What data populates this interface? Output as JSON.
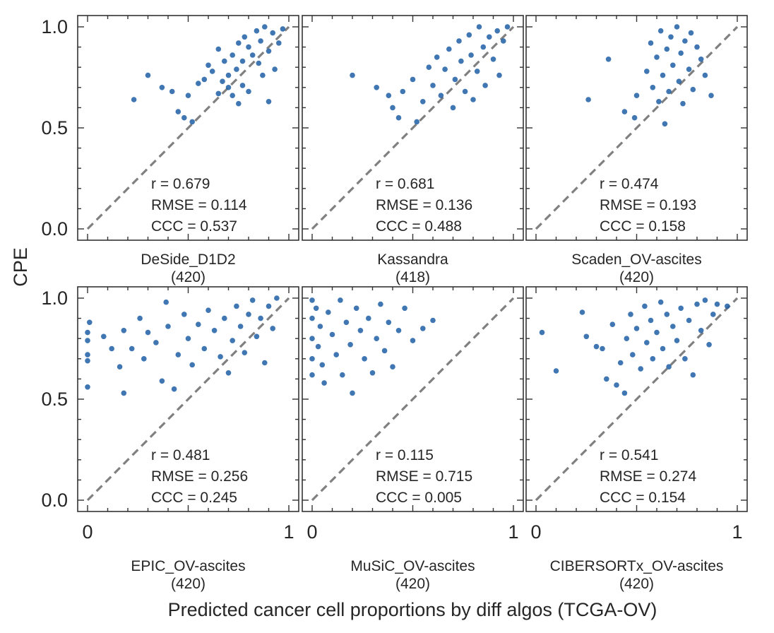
{
  "chart_data": {
    "type": "scatter",
    "ylabel": "CPE",
    "xlabel": "Predicted cancer cell proportions by diff algos (TCGA-OV)",
    "xlim": [
      0,
      1
    ],
    "ylim": [
      0,
      1
    ],
    "x_ticks": [
      "0",
      "1"
    ],
    "y_ticks": [
      "0.0",
      "0.5",
      "1.0"
    ],
    "diagonal": "y = x (dashed grey)",
    "marker_color": "#1f5fa6",
    "panels": [
      {
        "name": "DeSide_D1D2",
        "n_label": "(420)",
        "stats": [
          "r = 0.679",
          "RMSE = 0.114",
          "CCC = 0.537"
        ],
        "points": [
          [
            0.23,
            0.64
          ],
          [
            0.3,
            0.76
          ],
          [
            0.37,
            0.7
          ],
          [
            0.42,
            0.68
          ],
          [
            0.45,
            0.58
          ],
          [
            0.48,
            0.55
          ],
          [
            0.52,
            0.53
          ],
          [
            0.5,
            0.66
          ],
          [
            0.55,
            0.72
          ],
          [
            0.58,
            0.74
          ],
          [
            0.6,
            0.81
          ],
          [
            0.62,
            0.78
          ],
          [
            0.65,
            0.89
          ],
          [
            0.65,
            0.67
          ],
          [
            0.67,
            0.73
          ],
          [
            0.68,
            0.83
          ],
          [
            0.7,
            0.76
          ],
          [
            0.7,
            0.7
          ],
          [
            0.72,
            0.86
          ],
          [
            0.72,
            0.66
          ],
          [
            0.74,
            0.79
          ],
          [
            0.75,
            0.92
          ],
          [
            0.75,
            0.62
          ],
          [
            0.77,
            0.83
          ],
          [
            0.77,
            0.71
          ],
          [
            0.78,
            0.95
          ],
          [
            0.8,
            0.9
          ],
          [
            0.8,
            0.68
          ],
          [
            0.82,
            0.86
          ],
          [
            0.84,
            0.98
          ],
          [
            0.85,
            0.82
          ],
          [
            0.86,
            0.93
          ],
          [
            0.87,
            0.76
          ],
          [
            0.88,
            1.0
          ],
          [
            0.9,
            0.88
          ],
          [
            0.9,
            0.63
          ],
          [
            0.92,
            0.97
          ],
          [
            0.93,
            0.79
          ],
          [
            0.95,
            0.92
          ],
          [
            0.97,
            0.99
          ]
        ]
      },
      {
        "name": "Kassandra",
        "n_label": "(418)",
        "stats": [
          "r = 0.681",
          "RMSE = 0.136",
          "CCC = 0.488"
        ],
        "points": [
          [
            0.2,
            0.76
          ],
          [
            0.32,
            0.7
          ],
          [
            0.38,
            0.66
          ],
          [
            0.4,
            0.6
          ],
          [
            0.43,
            0.55
          ],
          [
            0.45,
            0.68
          ],
          [
            0.5,
            0.74
          ],
          [
            0.52,
            0.53
          ],
          [
            0.55,
            0.63
          ],
          [
            0.58,
            0.8
          ],
          [
            0.6,
            0.71
          ],
          [
            0.62,
            0.85
          ],
          [
            0.64,
            0.66
          ],
          [
            0.66,
            0.79
          ],
          [
            0.68,
            0.89
          ],
          [
            0.7,
            0.6
          ],
          [
            0.71,
            0.74
          ],
          [
            0.73,
            0.93
          ],
          [
            0.74,
            0.83
          ],
          [
            0.76,
            0.68
          ],
          [
            0.78,
            0.96
          ],
          [
            0.79,
            0.86
          ],
          [
            0.8,
            0.64
          ],
          [
            0.82,
            0.78
          ],
          [
            0.83,
            1.0
          ],
          [
            0.85,
            0.9
          ],
          [
            0.86,
            0.71
          ],
          [
            0.88,
            0.95
          ],
          [
            0.9,
            0.84
          ],
          [
            0.92,
            0.98
          ],
          [
            0.93,
            0.76
          ],
          [
            0.95,
            0.93
          ],
          [
            0.97,
            1.0
          ]
        ]
      },
      {
        "name": "Scaden_OV-ascites",
        "n_label": "(420)",
        "stats": [
          "r = 0.474",
          "RMSE = 0.193",
          "CCC = 0.158"
        ],
        "points": [
          [
            0.26,
            0.64
          ],
          [
            0.36,
            0.84
          ],
          [
            0.44,
            0.58
          ],
          [
            0.49,
            0.55
          ],
          [
            0.5,
            0.66
          ],
          [
            0.55,
            0.78
          ],
          [
            0.57,
            0.92
          ],
          [
            0.58,
            0.7
          ],
          [
            0.6,
            0.85
          ],
          [
            0.61,
            0.63
          ],
          [
            0.62,
            0.98
          ],
          [
            0.63,
            0.76
          ],
          [
            0.64,
            0.52
          ],
          [
            0.65,
            0.89
          ],
          [
            0.66,
            0.68
          ],
          [
            0.67,
            0.95
          ],
          [
            0.68,
            0.81
          ],
          [
            0.7,
            1.0
          ],
          [
            0.71,
            0.73
          ],
          [
            0.72,
            0.87
          ],
          [
            0.73,
            0.62
          ],
          [
            0.74,
            0.93
          ],
          [
            0.76,
            0.79
          ],
          [
            0.77,
            0.97
          ],
          [
            0.78,
            0.69
          ],
          [
            0.8,
            0.9
          ],
          [
            0.82,
            0.84
          ],
          [
            0.84,
            0.76
          ],
          [
            0.87,
            0.66
          ]
        ]
      },
      {
        "name": "EPIC_OV-ascites",
        "n_label": "(420)",
        "stats": [
          "r = 0.481",
          "RMSE = 0.256",
          "CCC = 0.245"
        ],
        "points": [
          [
            0.0,
            0.83
          ],
          [
            0.0,
            0.79
          ],
          [
            0.0,
            0.72
          ],
          [
            0.0,
            0.69
          ],
          [
            0.0,
            0.56
          ],
          [
            0.01,
            0.88
          ],
          [
            0.08,
            0.81
          ],
          [
            0.12,
            0.75
          ],
          [
            0.16,
            0.66
          ],
          [
            0.18,
            0.53
          ],
          [
            0.18,
            0.84
          ],
          [
            0.22,
            0.75
          ],
          [
            0.26,
            0.9
          ],
          [
            0.28,
            0.7
          ],
          [
            0.3,
            0.83
          ],
          [
            0.34,
            0.78
          ],
          [
            0.37,
            0.59
          ],
          [
            0.39,
            0.98
          ],
          [
            0.4,
            0.86
          ],
          [
            0.43,
            0.55
          ],
          [
            0.45,
            0.72
          ],
          [
            0.48,
            0.92
          ],
          [
            0.5,
            0.8
          ],
          [
            0.52,
            0.67
          ],
          [
            0.55,
            0.87
          ],
          [
            0.58,
            0.75
          ],
          [
            0.6,
            0.94
          ],
          [
            0.63,
            0.84
          ],
          [
            0.66,
            0.71
          ],
          [
            0.68,
            0.9
          ],
          [
            0.7,
            0.63
          ],
          [
            0.72,
            0.79
          ],
          [
            0.74,
            0.96
          ],
          [
            0.76,
            0.86
          ],
          [
            0.78,
            0.73
          ],
          [
            0.8,
            0.92
          ],
          [
            0.82,
            0.99
          ],
          [
            0.84,
            0.81
          ],
          [
            0.86,
            0.9
          ],
          [
            0.88,
            0.68
          ],
          [
            0.9,
            0.96
          ],
          [
            0.92,
            0.85
          ],
          [
            0.94,
            1.0
          ]
        ]
      },
      {
        "name": "MuSiC_OV-ascites",
        "n_label": "(420)",
        "stats": [
          "r = 0.115",
          "RMSE = 0.715",
          "CCC = 0.005"
        ],
        "points": [
          [
            0.0,
            0.99
          ],
          [
            0.0,
            0.9
          ],
          [
            0.0,
            0.8
          ],
          [
            0.0,
            0.7
          ],
          [
            0.0,
            0.62
          ],
          [
            0.02,
            0.95
          ],
          [
            0.03,
            0.76
          ],
          [
            0.04,
            0.86
          ],
          [
            0.05,
            0.67
          ],
          [
            0.06,
            0.58
          ],
          [
            0.08,
            0.93
          ],
          [
            0.1,
            0.82
          ],
          [
            0.12,
            0.72
          ],
          [
            0.14,
            0.99
          ],
          [
            0.15,
            0.62
          ],
          [
            0.17,
            0.88
          ],
          [
            0.19,
            0.77
          ],
          [
            0.2,
            0.53
          ],
          [
            0.22,
            0.95
          ],
          [
            0.24,
            0.84
          ],
          [
            0.26,
            0.7
          ],
          [
            0.28,
            0.9
          ],
          [
            0.3,
            0.63
          ],
          [
            0.32,
            0.8
          ],
          [
            0.34,
            0.97
          ],
          [
            0.36,
            0.74
          ],
          [
            0.38,
            0.88
          ],
          [
            0.4,
            0.66
          ],
          [
            0.43,
            0.84
          ],
          [
            0.46,
            0.95
          ],
          [
            0.5,
            0.79
          ],
          [
            0.55,
            0.85
          ],
          [
            0.6,
            0.89
          ]
        ]
      },
      {
        "name": "CIBERSORTx_OV-ascites",
        "n_label": "(420)",
        "stats": [
          "r = 0.541",
          "RMSE = 0.274",
          "CCC = 0.154"
        ],
        "points": [
          [
            0.03,
            0.83
          ],
          [
            0.1,
            0.64
          ],
          [
            0.23,
            0.93
          ],
          [
            0.25,
            0.81
          ],
          [
            0.3,
            0.76
          ],
          [
            0.33,
            0.75
          ],
          [
            0.35,
            0.6
          ],
          [
            0.38,
            0.87
          ],
          [
            0.4,
            0.57
          ],
          [
            0.42,
            0.68
          ],
          [
            0.44,
            0.53
          ],
          [
            0.45,
            0.8
          ],
          [
            0.47,
            0.92
          ],
          [
            0.48,
            0.72
          ],
          [
            0.5,
            0.85
          ],
          [
            0.52,
            0.65
          ],
          [
            0.54,
            0.96
          ],
          [
            0.55,
            0.78
          ],
          [
            0.57,
            0.89
          ],
          [
            0.58,
            0.7
          ],
          [
            0.6,
            0.83
          ],
          [
            0.62,
            0.98
          ],
          [
            0.63,
            0.75
          ],
          [
            0.65,
            0.92
          ],
          [
            0.66,
            0.66
          ],
          [
            0.68,
            0.86
          ],
          [
            0.7,
            0.79
          ],
          [
            0.72,
            0.95
          ],
          [
            0.74,
            0.7
          ],
          [
            0.76,
            0.89
          ],
          [
            0.78,
            0.62
          ],
          [
            0.8,
            0.97
          ],
          [
            0.82,
            0.84
          ],
          [
            0.84,
            0.99
          ],
          [
            0.86,
            0.77
          ],
          [
            0.88,
            0.92
          ],
          [
            0.9,
            0.97
          ],
          [
            0.95,
            0.96
          ]
        ]
      }
    ]
  }
}
